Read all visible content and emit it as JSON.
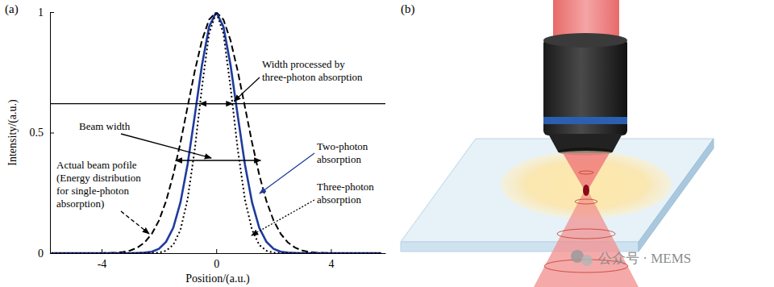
{
  "chart_data": {
    "type": "line",
    "panel_label": "(a)",
    "x_label": "Position/(a.u.)",
    "y_label": "Intensity/(a.u.)",
    "xlim": [
      -5.8,
      5.9
    ],
    "ylim": [
      0,
      1
    ],
    "xticks": [
      -4,
      0,
      4
    ],
    "yticks": [
      0,
      0.5,
      1
    ],
    "x": [
      -5.75,
      -5.5,
      -5.25,
      -5,
      -4.75,
      -4.5,
      -4.25,
      -4,
      -3.75,
      -3.5,
      -3.25,
      -3,
      -2.75,
      -2.5,
      -2.25,
      -2,
      -1.75,
      -1.5,
      -1.25,
      -1,
      -0.75,
      -0.5,
      -0.25,
      0,
      0.25,
      0.5,
      0.75,
      1,
      1.25,
      1.5,
      1.75,
      2,
      2.25,
      2.5,
      2.75,
      3,
      3.25,
      3.5,
      3.75,
      4,
      4.25,
      4.5,
      4.75,
      5,
      5.25,
      5.5,
      5.75
    ],
    "series": [
      {
        "color": "#000000",
        "line_style": "dashed",
        "values": [
          0,
          0,
          0,
          0,
          0,
          0,
          0,
          0,
          0.001,
          0.002,
          0.005,
          0.011,
          0.023,
          0.044,
          0.08,
          0.135,
          0.216,
          0.325,
          0.458,
          0.607,
          0.755,
          0.882,
          0.969,
          1,
          0.969,
          0.882,
          0.755,
          0.607,
          0.458,
          0.325,
          0.216,
          0.135,
          0.08,
          0.044,
          0.023,
          0.011,
          0.005,
          0.002,
          0.001,
          0,
          0,
          0,
          0,
          0,
          0,
          0,
          0
        ]
      },
      {
        "color": "#1f3b9e",
        "line_style": "solid",
        "values": [
          0,
          0,
          0,
          0,
          0,
          0,
          0,
          0,
          0,
          0,
          0,
          0,
          0.001,
          0.002,
          0.006,
          0.018,
          0.047,
          0.105,
          0.21,
          0.368,
          0.57,
          0.779,
          0.939,
          1,
          0.939,
          0.779,
          0.57,
          0.368,
          0.21,
          0.105,
          0.047,
          0.018,
          0.006,
          0.002,
          0.001,
          0,
          0,
          0,
          0,
          0,
          0,
          0,
          0,
          0,
          0,
          0,
          0
        ]
      },
      {
        "color": "#000000",
        "line_style": "dotted",
        "values": [
          0,
          0,
          0,
          0,
          0,
          0,
          0,
          0,
          0,
          0,
          0,
          0,
          0,
          0,
          0.001,
          0.002,
          0.01,
          0.034,
          0.096,
          0.223,
          0.43,
          0.687,
          0.911,
          1,
          0.911,
          0.687,
          0.43,
          0.223,
          0.096,
          0.034,
          0.01,
          0.002,
          0.001,
          0,
          0,
          0,
          0,
          0,
          0,
          0,
          0,
          0,
          0,
          0,
          0,
          0,
          0
        ]
      }
    ],
    "reference_line_y": 0.62,
    "annotations": [
      {
        "lines": [
          "Width processed by",
          "three-photon absorption"
        ]
      },
      {
        "lines": [
          "Beam width"
        ]
      },
      {
        "lines": [
          "Actual beam pofile",
          "(Energy distribution",
          "for single-photon",
          "absorption)"
        ]
      },
      {
        "lines": [
          "Two-photon",
          "absorption"
        ]
      },
      {
        "lines": [
          "Three-photon",
          "absorption"
        ]
      }
    ]
  },
  "diagram": {
    "panel_label": "(b)",
    "watermark": "公众号 · MEMS"
  }
}
